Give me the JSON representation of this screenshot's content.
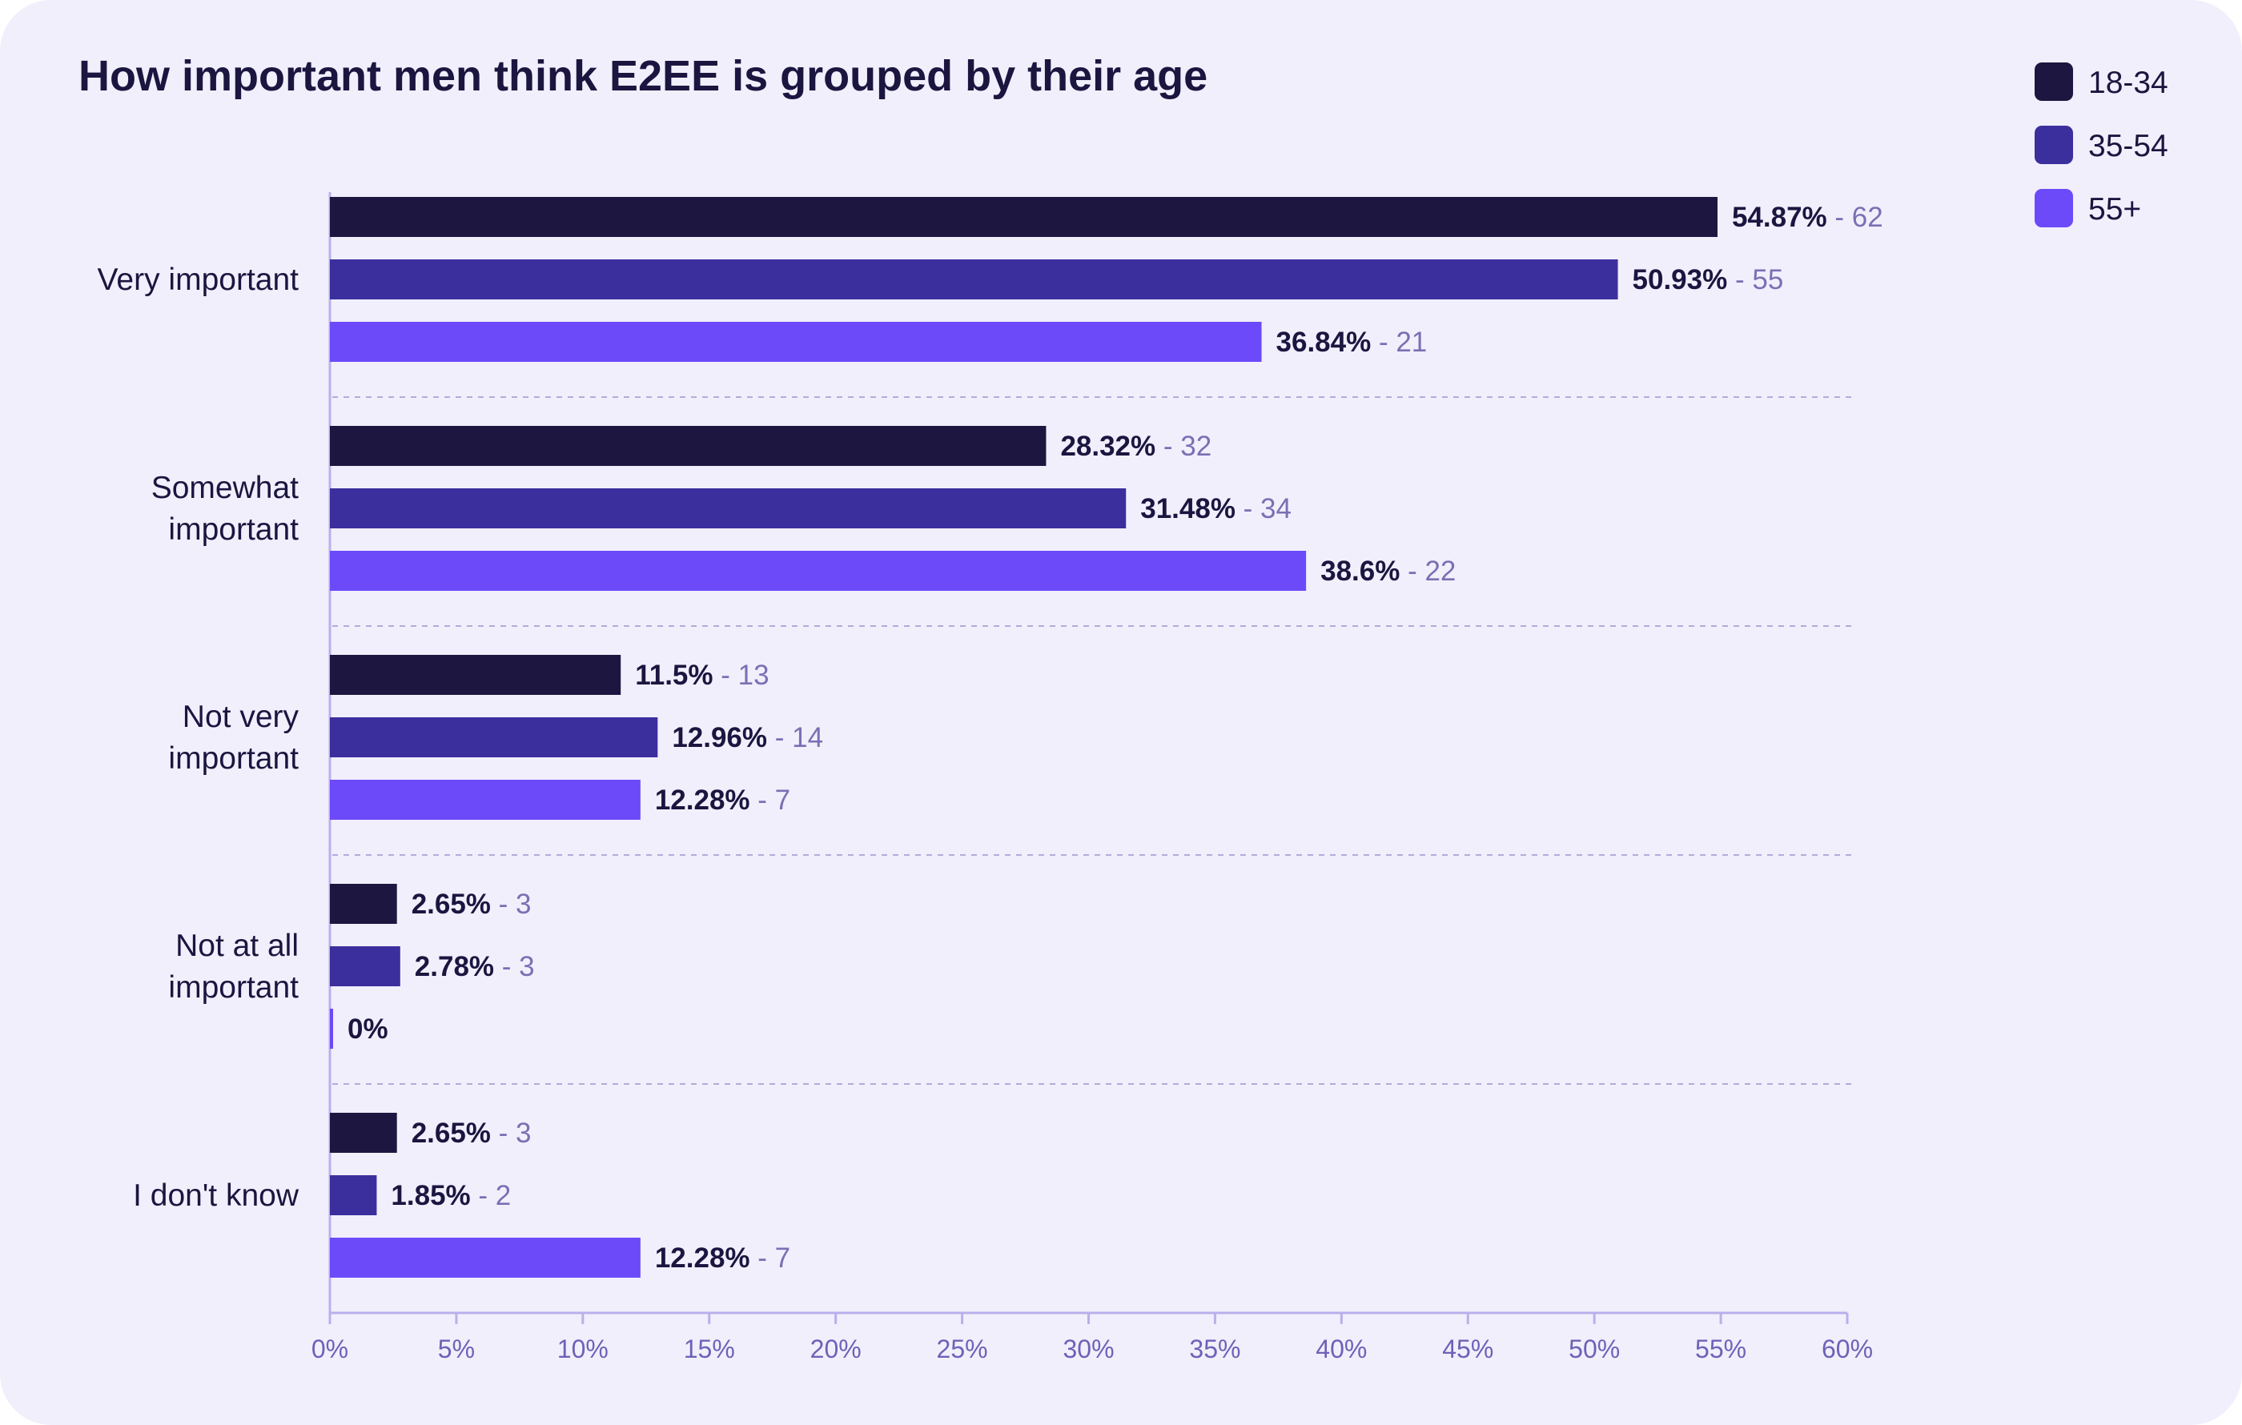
{
  "chart_data": {
    "type": "bar",
    "orientation": "horizontal",
    "title": "How important men think E2EE is grouped by their age",
    "xlabel": "",
    "ylabel": "",
    "xlim": [
      0,
      60
    ],
    "ticks": [
      "0%",
      "5%",
      "10%",
      "15%",
      "20%",
      "25%",
      "30%",
      "35%",
      "40%",
      "45%",
      "50%",
      "55%",
      "60%"
    ],
    "tick_values": [
      0,
      5,
      10,
      15,
      20,
      25,
      30,
      35,
      40,
      45,
      50,
      55,
      60
    ],
    "legend_position": "top-right",
    "grid": false,
    "categories": [
      "Very important",
      "Somewhat important",
      "Not very important",
      "Not at all important",
      "I don't know"
    ],
    "series": [
      {
        "name": "18-34",
        "color": "#1d1640",
        "values": [
          54.87,
          28.32,
          11.5,
          2.65,
          2.65
        ],
        "value_labels": [
          "54.87%",
          "28.32%",
          "11.5%",
          "2.65%",
          "2.65%"
        ],
        "count_labels": [
          "- 62",
          "- 32",
          "- 13",
          "- 3",
          "- 3"
        ]
      },
      {
        "name": "35-54",
        "color": "#3b2f9e",
        "values": [
          50.93,
          31.48,
          12.96,
          2.78,
          1.85
        ],
        "value_labels": [
          "50.93%",
          "31.48%",
          "12.96%",
          "2.78%",
          "1.85%"
        ],
        "count_labels": [
          "- 55",
          "- 34",
          "- 14",
          "- 3",
          "- 2"
        ]
      },
      {
        "name": "55+",
        "color": "#6c4afa",
        "values": [
          36.84,
          38.6,
          12.28,
          0,
          12.28
        ],
        "value_labels": [
          "36.84%",
          "38.6%",
          "12.28%",
          "0%",
          "12.28%"
        ],
        "count_labels": [
          "- 21",
          "- 22",
          "- 7",
          "",
          "- 7"
        ]
      }
    ]
  }
}
